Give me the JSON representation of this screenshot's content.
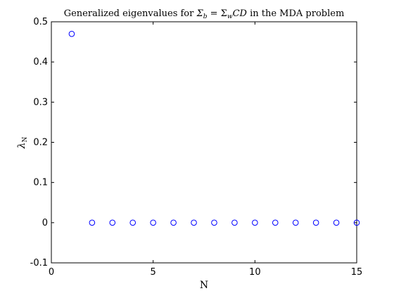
{
  "chart_data": {
    "type": "scatter",
    "title": {
      "before": "Generalized eigenvalues for ",
      "math_sigma_b": "Σ",
      "sub_b": "b",
      "equals": " = ",
      "math_sigma_w": "Σ",
      "sub_w": "w",
      "math_cd": "CD",
      "after": " in the MDA problem"
    },
    "xlabel": "N",
    "ylabel": {
      "symbol": "λ",
      "subscript": "N"
    },
    "xlim": [
      0,
      15
    ],
    "ylim": [
      -0.1,
      0.5
    ],
    "x_ticks": [
      0,
      5,
      10,
      15
    ],
    "x_tick_labels": [
      "0",
      "5",
      "10",
      "15"
    ],
    "y_ticks": [
      -0.1,
      0,
      0.1,
      0.2,
      0.3,
      0.4,
      0.5
    ],
    "y_tick_labels": [
      "-0.1",
      "0",
      "0.1",
      "0.2",
      "0.3",
      "0.4",
      "0.5"
    ],
    "grid": false,
    "marker": "circle-open",
    "marker_color": "#0000ff",
    "series": [
      {
        "x": [
          1,
          2,
          3,
          4,
          5,
          6,
          7,
          8,
          9,
          10,
          11,
          12,
          13,
          14,
          15
        ],
        "y": [
          0.47,
          0,
          0,
          0,
          0,
          0,
          0,
          0,
          0,
          0,
          0,
          0,
          0,
          0,
          0
        ]
      }
    ]
  }
}
